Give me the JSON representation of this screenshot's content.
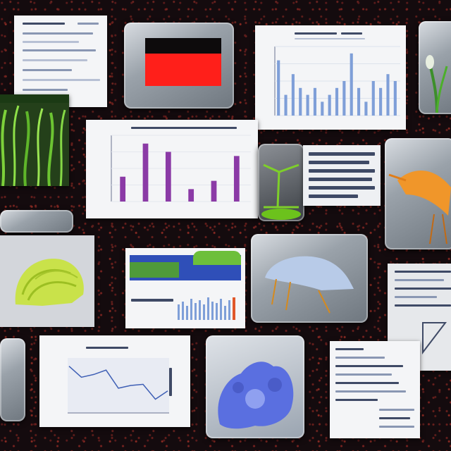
{
  "scene": {
    "description_colors": {
      "background": "#140b0e",
      "bar_blue": "#7f9fd8",
      "bar_purple": "#8b3aa6",
      "red_panel": "#ff1f1a",
      "plant_green": "#4caf2a",
      "line_chart": "#3e5fb5"
    }
  },
  "icons": [
    "plant-image-icon",
    "bird-image-icon",
    "jellyfish-image-icon",
    "coral-image-icon",
    "brain-coral-image-icon",
    "seaweed-image-icon"
  ],
  "chart_data": [
    {
      "type": "bar",
      "title": "",
      "values": [
        8,
        3,
        6,
        4,
        3,
        4,
        2,
        3,
        4,
        5,
        9,
        4,
        2,
        5,
        4,
        6,
        5
      ],
      "categories": [
        "",
        "",
        "",
        "",
        "",
        "",
        "",
        "",
        "",
        "",
        "",
        "",
        "",
        "",
        "",
        "",
        ""
      ],
      "xlabel": "",
      "ylabel": "",
      "ylim": [
        0,
        10
      ]
    },
    {
      "type": "bar",
      "title": "",
      "values": [
        3,
        7,
        6,
        1.5,
        2.5,
        5.5
      ],
      "categories": [
        "",
        "",
        "",
        "",
        "",
        ""
      ],
      "xlabel": "",
      "ylabel": "",
      "ylim": [
        0,
        8
      ]
    },
    {
      "type": "line",
      "title": "",
      "x": [
        0,
        1,
        2,
        3,
        4,
        5,
        6,
        7,
        8
      ],
      "values": [
        8.5,
        6.5,
        7,
        7.8,
        4.5,
        5,
        5.2,
        2.5,
        4
      ],
      "xlabel": "",
      "ylabel": "",
      "ylim": [
        0,
        10
      ]
    }
  ]
}
